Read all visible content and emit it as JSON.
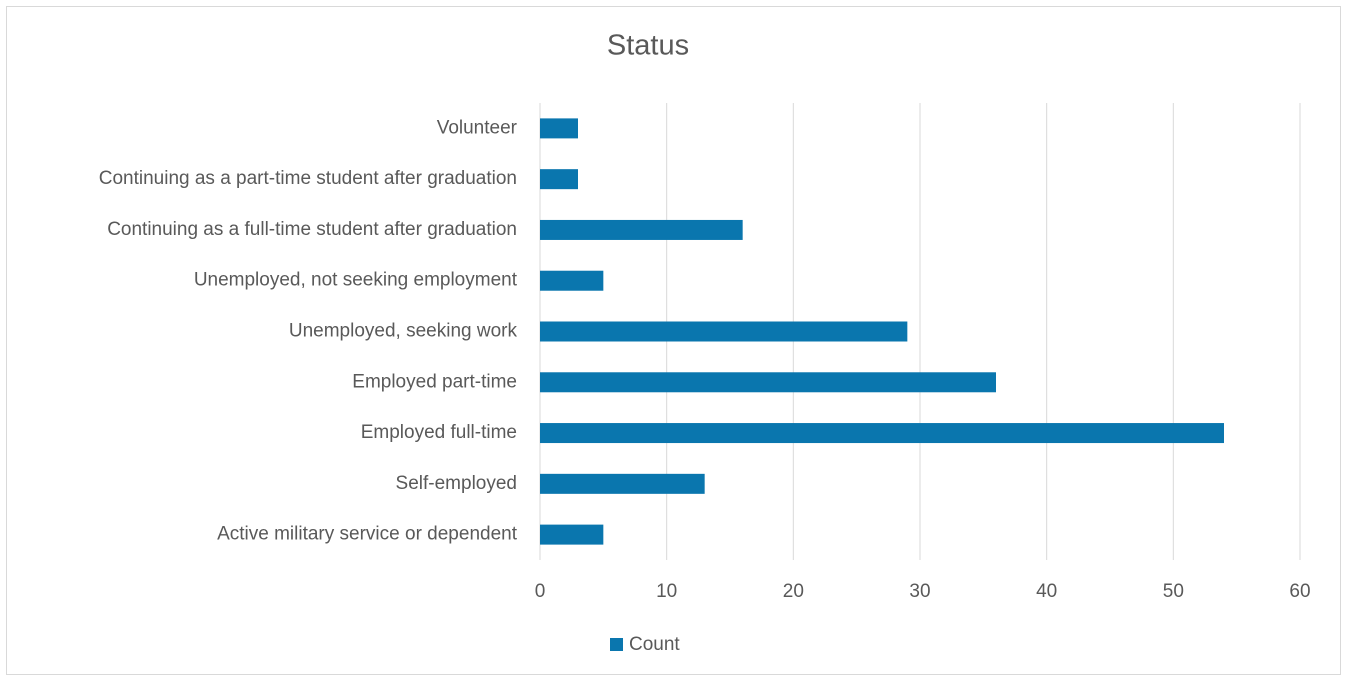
{
  "chart_data": {
    "type": "bar",
    "orientation": "horizontal",
    "title": "Status",
    "categories": [
      "Volunteer",
      "Continuing as a part-time student after graduation",
      "Continuing as a full-time student after graduation",
      "Unemployed, not seeking employment",
      "Unemployed, seeking work",
      "Employed part-time",
      "Employed full-time",
      "Self-employed",
      "Active military service or dependent"
    ],
    "series": [
      {
        "name": "Count",
        "color": "#0a76ae",
        "values": [
          3,
          3,
          16,
          5,
          29,
          36,
          54,
          13,
          5
        ]
      }
    ],
    "xlim": [
      0,
      60
    ],
    "xticks": [
      0,
      10,
      20,
      30,
      40,
      50,
      60
    ],
    "grid": true,
    "legend": "bottom"
  }
}
